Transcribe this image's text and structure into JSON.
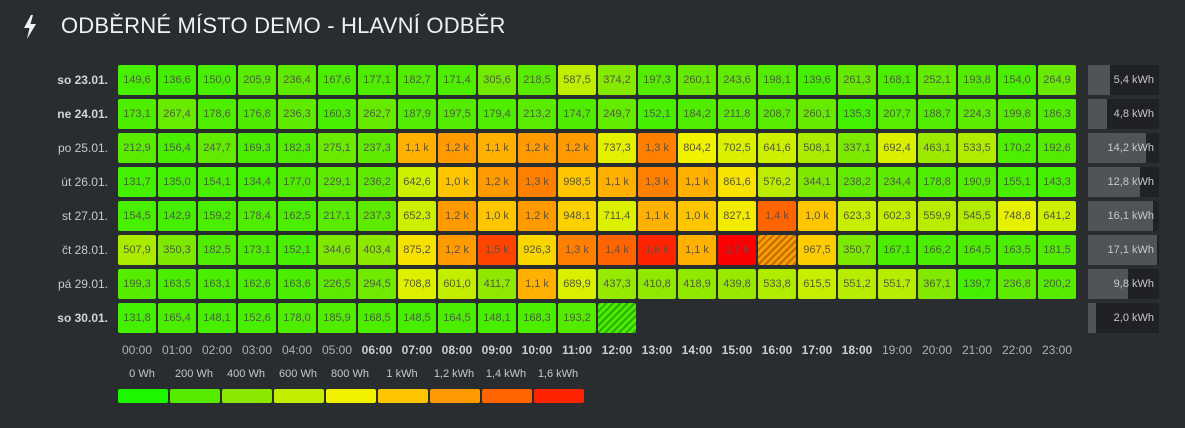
{
  "header": {
    "title": "ODBĚRNÉ MÍSTO DEMO - HLAVNÍ ODBĚR",
    "icon": "bolt-icon"
  },
  "days": [
    {
      "label": "so 23.01.",
      "bold": true,
      "total": "5,4 kWh",
      "total_kwh": 5.4,
      "cells": [
        "149,6",
        "136,6",
        "150,0",
        "205,9",
        "236,4",
        "167,6",
        "177,1",
        "182,7",
        "171,4",
        "305,6",
        "218,5",
        "587,5",
        "374,2",
        "197,3",
        "260,1",
        "243,6",
        "198,1",
        "139,6",
        "261,3",
        "168,1",
        "252,1",
        "193,8",
        "154,0",
        "264,9"
      ]
    },
    {
      "label": "ne 24.01.",
      "bold": true,
      "total": "4,8 kWh",
      "total_kwh": 4.8,
      "cells": [
        "173,1",
        "267,4",
        "178,6",
        "176,8",
        "236,3",
        "160,3",
        "262,7",
        "187,9",
        "197,5",
        "179,4",
        "213,2",
        "174,7",
        "249,7",
        "152,1",
        "184,2",
        "211,8",
        "208,7",
        "260,1",
        "135,3",
        "207,7",
        "188,7",
        "224,3",
        "199,8",
        "186,3"
      ]
    },
    {
      "label": "po 25.01.",
      "bold": false,
      "total": "14,2 kWh",
      "total_kwh": 14.2,
      "cells": [
        "212,9",
        "156,4",
        "247,7",
        "169,3",
        "182,3",
        "275,1",
        "237,3",
        "1,1 k",
        "1,2 k",
        "1,1 k",
        "1,2 k",
        "1,2 k",
        "737,3",
        "1,3 k",
        "804,2",
        "702,5",
        "641,6",
        "508,1",
        "337,1",
        "692,4",
        "463,1",
        "533,5",
        "170,2",
        "192,6"
      ]
    },
    {
      "label": "út 26.01.",
      "bold": false,
      "total": "12,8 kWh",
      "total_kwh": 12.8,
      "cells": [
        "131,7",
        "135,0",
        "154,1",
        "134,4",
        "177,0",
        "229,1",
        "236,2",
        "642,6",
        "1,0 k",
        "1,2 k",
        "1,3 k",
        "998,5",
        "1,1 k",
        "1,3 k",
        "1,1 k",
        "861,6",
        "576,2",
        "344,1",
        "238,2",
        "234,4",
        "178,8",
        "190,9",
        "155,1",
        "143,3"
      ]
    },
    {
      "label": "st 27.01.",
      "bold": false,
      "total": "16,1 kWh",
      "total_kwh": 16.1,
      "cells": [
        "154,5",
        "142,9",
        "159,2",
        "178,4",
        "162,5",
        "217,1",
        "237,3",
        "652,3",
        "1,2 k",
        "1,0 k",
        "1,2 k",
        "948,1",
        "711,4",
        "1,1 k",
        "1,0 k",
        "827,1",
        "1,4 k",
        "1,0 k",
        "623,3",
        "602,3",
        "559,9",
        "545,5",
        "748,8",
        "641,2"
      ]
    },
    {
      "label": "čt 28.01.",
      "bold": false,
      "total": "17,1 kWh",
      "total_kwh": 17.1,
      "cells": [
        "507,9",
        "350,3",
        "182,5",
        "173,1",
        "152,1",
        "344,6",
        "403,4",
        "875,2",
        "1,2 k",
        "1,5 k",
        "926,3",
        "1,3 k",
        "1,4 k",
        "1,6 k",
        "1,1 k",
        "1,7 k",
        "",
        "967,5",
        "350,7",
        "167,1",
        "166,2",
        "164,5",
        "163,5",
        "181,5"
      ]
    },
    {
      "label": "pá 29.01.",
      "bold": false,
      "total": "9,8 kWh",
      "total_kwh": 9.8,
      "cells": [
        "199,3",
        "163,5",
        "163,1",
        "162,6",
        "163,6",
        "226,5",
        "294,5",
        "708,8",
        "601,0",
        "411,7",
        "1,1 k",
        "689,9",
        "437,3",
        "410,8",
        "418,9",
        "439,8",
        "533,8",
        "615,5",
        "551,2",
        "551,7",
        "367,1",
        "139,7",
        "236,8",
        "200,2"
      ]
    },
    {
      "label": "so 30.01.",
      "bold": true,
      "total": "2,0 kWh",
      "total_kwh": 2.0,
      "cells": [
        "131,8",
        "165,4",
        "148,1",
        "152,6",
        "178,0",
        "185,9",
        "168,5",
        "148,5",
        "164,5",
        "148,1",
        "168,3",
        "193,2",
        ""
      ]
    }
  ],
  "hatched_cells": [
    [
      5,
      16
    ],
    [
      7,
      12
    ]
  ],
  "hatched_values_wh": [
    1200,
    150
  ],
  "hours": [
    "00:00",
    "01:00",
    "02:00",
    "03:00",
    "04:00",
    "05:00",
    "06:00",
    "07:00",
    "08:00",
    "09:00",
    "10:00",
    "11:00",
    "12:00",
    "13:00",
    "14:00",
    "15:00",
    "16:00",
    "17:00",
    "18:00",
    "19:00",
    "20:00",
    "21:00",
    "22:00",
    "23:00"
  ],
  "bold_hours": [
    6,
    7,
    8,
    9,
    10,
    11,
    12,
    13,
    14,
    15,
    16,
    17,
    18
  ],
  "legend": {
    "labels": [
      "0 Wh",
      "200 Wh",
      "400 Wh",
      "600 Wh",
      "800 Wh",
      "1 kWh",
      "1,2 kWh",
      "1,4 kWh",
      "1,6 kWh"
    ],
    "colors": [
      "#1cf700",
      "#55ec00",
      "#8ce800",
      "#c3ee00",
      "#f2f200",
      "#ffc600",
      "#ff9a00",
      "#ff6400",
      "#ff2400"
    ]
  }
}
